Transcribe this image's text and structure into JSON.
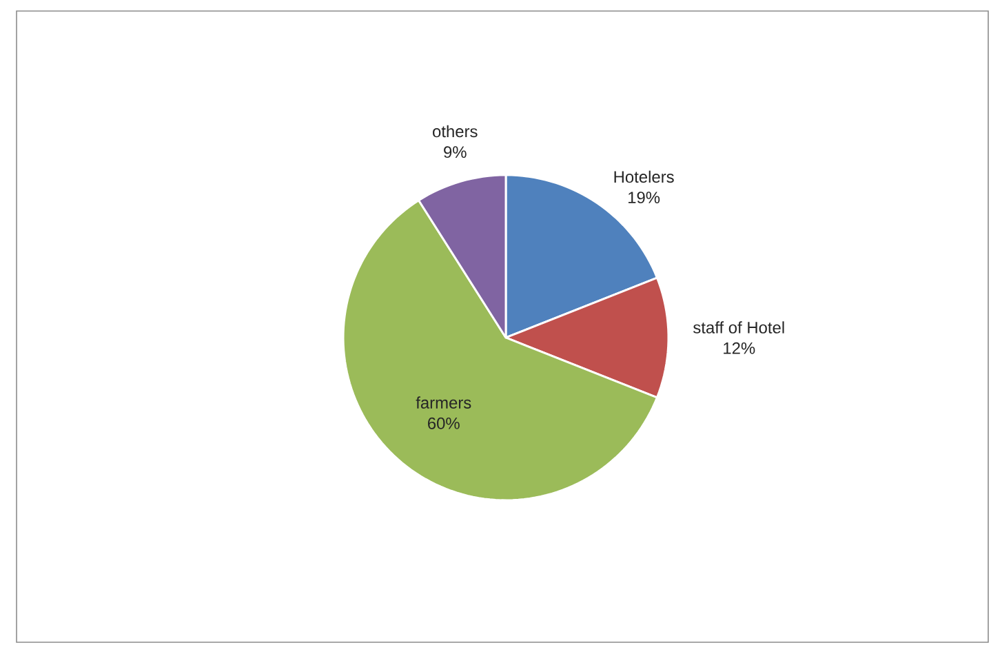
{
  "chart_data": {
    "type": "pie",
    "categories": [
      "Hotelers",
      "staff of Hotel",
      "farmers",
      "others"
    ],
    "values": [
      19,
      12,
      60,
      9
    ],
    "value_labels": [
      "19%",
      "12%",
      "60%",
      "9%"
    ],
    "colors": [
      "#4f81bd",
      "#c0504d",
      "#9bbb59",
      "#8064a2"
    ]
  }
}
